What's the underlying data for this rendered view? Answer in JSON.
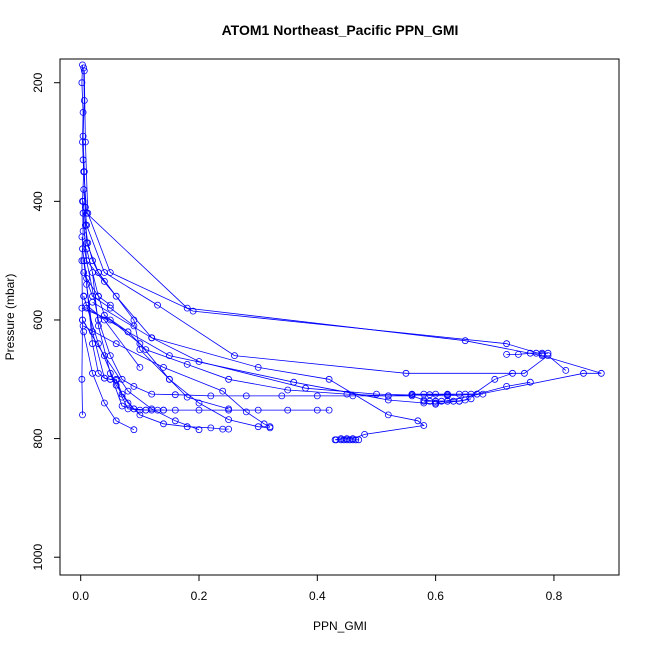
{
  "chart_data": {
    "type": "line",
    "title": "ATOM1 Northeast_Pacific PPN_GMI",
    "xlabel": "PPN_GMI",
    "ylabel": "Pressure (mbar)",
    "xlim": [
      -0.035,
      0.91
    ],
    "ylim": [
      1030,
      160
    ],
    "y_reversed": true,
    "grid": false,
    "x_ticks": [
      0.0,
      0.2,
      0.4,
      0.6,
      0.8
    ],
    "x_tick_labels": [
      "0.0",
      "0.2",
      "0.4",
      "0.6",
      "0.8"
    ],
    "y_ticks": [
      200,
      400,
      600,
      800,
      1000
    ],
    "y_tick_labels": [
      "200",
      "400",
      "600",
      "800",
      "1000"
    ],
    "series_color": "#0000ff",
    "series": [
      {
        "x": [
          0.003,
          0.002,
          0.004,
          0.003,
          0.005,
          0.003,
          0.004,
          0.002,
          0.003,
          0.002,
          0.003
        ],
        "y": [
          170,
          200,
          250,
          300,
          350,
          400,
          450,
          500,
          600,
          700,
          760
        ]
      },
      {
        "x": [
          0.005,
          0.006,
          0.004,
          0.006,
          0.008,
          0.01,
          0.03,
          0.09,
          0.1,
          0.15,
          0.18,
          0.25
        ],
        "y": [
          175,
          230,
          290,
          350,
          410,
          470,
          520,
          600,
          650,
          700,
          730,
          750
        ]
      },
      {
        "x": [
          0.006,
          0.008,
          0.012,
          0.05,
          0.19,
          0.72,
          0.78
        ],
        "y": [
          180,
          300,
          420,
          520,
          585,
          640,
          658
        ]
      },
      {
        "x": [
          0.004,
          0.01,
          0.18,
          0.65,
          0.78,
          0.88,
          0.85,
          0.6
        ],
        "y": [
          330,
          420,
          580,
          635,
          660,
          690,
          690,
          740
        ]
      },
      {
        "x": [
          0.005,
          0.01,
          0.04,
          0.13,
          0.26,
          0.55,
          0.75,
          0.79,
          0.82
        ],
        "y": [
          380,
          440,
          520,
          575,
          660,
          690,
          690,
          660,
          685
        ]
      },
      {
        "x": [
          0.004,
          0.01,
          0.06,
          0.12,
          0.2,
          0.38,
          0.5,
          0.62,
          0.67,
          0.72,
          0.76
        ],
        "y": [
          420,
          500,
          560,
          630,
          670,
          715,
          725,
          728,
          725,
          712,
          705
        ]
      },
      {
        "x": [
          0.01,
          0.03,
          0.04,
          0.08,
          0.11,
          0.18,
          0.25,
          0.35,
          0.45,
          0.52,
          0.56,
          0.58,
          0.6,
          0.64,
          0.66
        ],
        "y": [
          480,
          560,
          592,
          620,
          650,
          675,
          700,
          718,
          725,
          728,
          728,
          735,
          737,
          737,
          733
        ]
      },
      {
        "x": [
          0.002,
          0.03,
          0.05,
          0.07,
          0.09,
          0.12,
          0.16,
          0.22,
          0.28,
          0.34,
          0.4,
          0.46,
          0.52,
          0.56,
          0.59,
          0.62,
          0.65,
          0.68
        ],
        "y": [
          460,
          600,
          660,
          700,
          712,
          725,
          726,
          728,
          728,
          728,
          728,
          728,
          728,
          726,
          726,
          726,
          725,
          725
        ]
      },
      {
        "x": [
          0.02,
          0.03,
          0.05,
          0.07,
          0.09,
          0.11,
          0.13,
          0.16,
          0.2,
          0.25,
          0.3,
          0.35,
          0.4,
          0.42
        ],
        "y": [
          520,
          610,
          690,
          745,
          750,
          752,
          752,
          752,
          752,
          752,
          752,
          752,
          752,
          752
        ]
      },
      {
        "x": [
          0.005,
          0.02,
          0.04,
          0.05,
          0.06,
          0.07,
          0.08,
          0.1,
          0.12,
          0.14
        ],
        "y": [
          500,
          620,
          698,
          700,
          702,
          730,
          750,
          752,
          752,
          752
        ]
      },
      {
        "x": [
          0.01,
          0.02,
          0.03,
          0.04,
          0.05,
          0.06,
          0.07,
          0.09,
          0.11,
          0.14
        ],
        "y": [
          540,
          640,
          690,
          698,
          700,
          700,
          725,
          750,
          752,
          752
        ]
      },
      {
        "x": [
          0.005,
          0.03,
          0.06,
          0.08,
          0.1,
          0.14,
          0.18,
          0.22,
          0.24,
          0.25
        ],
        "y": [
          560,
          640,
          710,
          740,
          760,
          775,
          780,
          782,
          784,
          784
        ]
      },
      {
        "x": [
          0.002,
          0.05,
          0.1,
          0.15,
          0.2,
          0.25,
          0.3,
          0.32
        ],
        "y": [
          580,
          600,
          640,
          700,
          740,
          768,
          780,
          782
        ]
      },
      {
        "x": [
          0.003,
          0.04,
          0.08,
          0.12,
          0.16,
          0.2
        ],
        "y": [
          600,
          660,
          720,
          750,
          770,
          785
        ]
      },
      {
        "x": [
          0.005,
          0.02,
          0.04,
          0.06,
          0.09
        ],
        "y": [
          620,
          690,
          740,
          770,
          785
        ]
      },
      {
        "x": [
          0.004,
          0.06,
          0.14,
          0.24,
          0.28,
          0.31,
          0.32
        ],
        "y": [
          610,
          640,
          680,
          720,
          755,
          775,
          780
        ]
      },
      {
        "x": [
          0.01,
          0.15,
          0.36,
          0.52,
          0.58,
          0.6,
          0.65,
          0.7,
          0.73
        ],
        "y": [
          580,
          660,
          705,
          735,
          740,
          742,
          735,
          700,
          690
        ]
      },
      {
        "x": [
          0.02,
          0.12,
          0.3,
          0.42,
          0.52,
          0.57,
          0.58,
          0.48,
          0.46,
          0.45,
          0.44,
          0.43
        ],
        "y": [
          570,
          630,
          680,
          700,
          760,
          770,
          778,
          793,
          800,
          800,
          800,
          802
        ]
      },
      {
        "x": [
          0.432,
          0.44,
          0.445,
          0.45,
          0.455,
          0.46,
          0.465,
          0.47
        ],
        "y": [
          802,
          802,
          802,
          802,
          802,
          802,
          802,
          802
        ]
      },
      {
        "x": [
          0.005,
          0.02,
          0.05,
          0.09
        ],
        "y": [
          520,
          560,
          580,
          610
        ]
      },
      {
        "x": [
          0.003,
          0.01,
          0.03,
          0.05
        ],
        "y": [
          480,
          530,
          560,
          575
        ]
      },
      {
        "x": [
          0.004,
          0.008,
          0.012,
          0.02,
          0.03,
          0.04
        ],
        "y": [
          400,
          440,
          470,
          500,
          520,
          535
        ]
      },
      {
        "x": [
          0.005,
          0.01,
          0.04,
          0.1
        ],
        "y": [
          560,
          575,
          600,
          680
        ]
      },
      {
        "x": [
          0.72,
          0.74,
          0.76,
          0.77,
          0.78,
          0.79
        ],
        "y": [
          658,
          658,
          656,
          656,
          656,
          656
        ]
      },
      {
        "x": [
          0.56,
          0.58,
          0.6,
          0.62,
          0.64,
          0.66,
          0.67
        ],
        "y": [
          725,
          725,
          725,
          725,
          725,
          725,
          725
        ]
      },
      {
        "x": [
          0.58,
          0.59,
          0.6,
          0.61,
          0.62,
          0.63,
          0.64
        ],
        "y": [
          737,
          737,
          737,
          737,
          737,
          737,
          737
        ]
      }
    ]
  }
}
